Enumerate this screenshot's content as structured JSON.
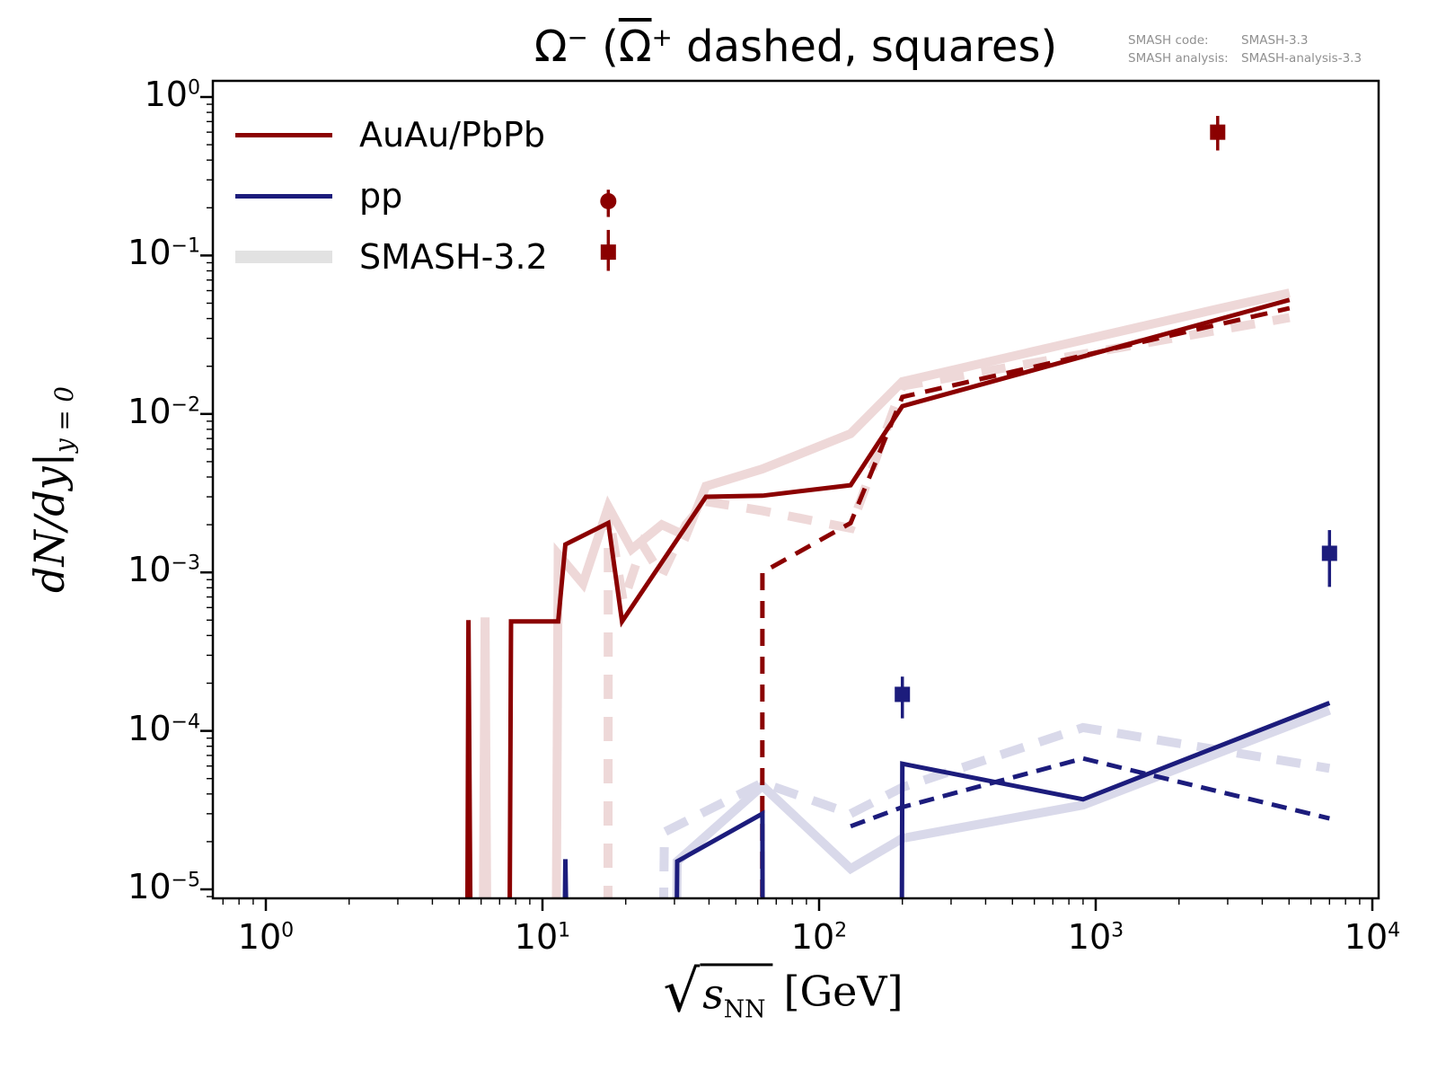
{
  "title": {
    "p1": "Ω",
    "s1": "−",
    "p2": " (",
    "p3": "Ω",
    "s2": "+",
    "p4": " dashed, squares)"
  },
  "note": {
    "line1_label": "SMASH code:",
    "line1_value": "SMASH-3.3",
    "line2_label": "SMASH analysis:",
    "line2_value": "SMASH-analysis-3.3"
  },
  "legend": {
    "items": [
      {
        "label": "AuAu/PbPb",
        "swatch": "auau"
      },
      {
        "label": "pp",
        "swatch": "pp"
      },
      {
        "label": "SMASH-3.2",
        "swatch": "smash_legend"
      }
    ]
  },
  "axes": {
    "ylabel_main": "dN/dy|",
    "ylabel_sub": "y = 0",
    "xlabel_radical": "√",
    "xlabel_symbol": "s",
    "xlabel_subscript": "NN",
    "xlabel_units": "[GeV]"
  },
  "colors": {
    "auau": "#8b0000",
    "pp": "#1c1c7c",
    "smash_auau": "#eed8d8",
    "smash_pp": "#d9d9ea",
    "smash_legend": "#e2e2e2",
    "note_text": "#909090"
  },
  "chart_data": {
    "type": "line",
    "title": "Ω⁻ (Ω̄⁺ dashed, squares)",
    "xlabel": "sqrt(s_NN) [GeV]",
    "ylabel": "dN/dy at y=0",
    "xscale": "log",
    "yscale": "log",
    "xlim": [
      0.64,
      10500
    ],
    "ylim": [
      8.8e-06,
      1.27
    ],
    "x_tick_exponents": [
      0,
      1,
      2,
      3,
      4
    ],
    "y_tick_exponents": [
      0,
      -1,
      -2,
      -3,
      -4,
      -5
    ],
    "legend_position": "upper left",
    "grid": false,
    "series": [
      {
        "name": "smash32-auau-omega-minus",
        "label": "SMASH-3.2 AuAu/PbPb Ω⁻",
        "color": "#eed8d8",
        "width": 10,
        "linestyle": "solid",
        "dash": "",
        "points": [
          [
            6.1,
            0
          ],
          [
            6.2,
            0.00052
          ],
          [
            6.3,
            0
          ],
          [
            11.2,
            0
          ],
          [
            11.4,
            0.0013
          ],
          [
            14,
            0.00085
          ],
          [
            17.3,
            0.0026
          ],
          [
            21,
            0.0014
          ],
          [
            27,
            0.002
          ],
          [
            33,
            0.0017
          ],
          [
            39,
            0.0035
          ],
          [
            62.4,
            0.0045
          ],
          [
            130,
            0.0075
          ],
          [
            200,
            0.016
          ],
          [
            2760,
            0.046
          ],
          [
            5020,
            0.058
          ]
        ]
      },
      {
        "name": "smash32-auau-omega-bar-plus",
        "label": "SMASH-3.2 AuAu/PbPb Ω̄⁺",
        "color": "#eed8d8",
        "width": 10,
        "linestyle": "dashed",
        "dash": "27 20",
        "points": [
          [
            17.25,
            0
          ],
          [
            17.3,
            0.00245
          ],
          [
            19.6,
            0.00065
          ],
          [
            23,
            0.0015
          ],
          [
            27,
            0.00095
          ],
          [
            33,
            0.002
          ],
          [
            39,
            0.0028
          ],
          [
            62.4,
            0.00245
          ],
          [
            130,
            0.0019
          ],
          [
            200,
            0.015
          ],
          [
            5020,
            0.0405
          ]
        ]
      },
      {
        "name": "smash32-pp-omega-minus",
        "label": "SMASH-3.2 pp Ω⁻",
        "color": "#d9d9ea",
        "width": 10,
        "linestyle": "solid",
        "dash": "",
        "points": [
          [
            30.5,
            0
          ],
          [
            30.7,
            1.5e-05
          ],
          [
            62.4,
            4.5e-05
          ],
          [
            130,
            1.35e-05
          ],
          [
            200,
            2.1e-05
          ],
          [
            900,
            3.4e-05
          ],
          [
            7000,
            0.000135
          ]
        ]
      },
      {
        "name": "smash32-pp-omega-bar-plus",
        "label": "SMASH-3.2 pp Ω̄⁺",
        "color": "#d9d9ea",
        "width": 10,
        "linestyle": "dashed",
        "dash": "27 18",
        "points": [
          [
            27.3,
            0
          ],
          [
            27.6,
            2.3e-05
          ],
          [
            62.4,
            4.7e-05
          ],
          [
            130,
            3e-05
          ],
          [
            200,
            4.4e-05
          ],
          [
            900,
            0.000105
          ],
          [
            7000,
            5.8e-05
          ]
        ]
      },
      {
        "name": "auau-omega-minus",
        "label": "AuAu/PbPb Ω⁻",
        "color": "#8b0000",
        "width": 5,
        "linestyle": "solid",
        "dash": "",
        "points": [
          [
            5.35,
            0
          ],
          [
            5.4,
            0.0005
          ],
          [
            5.5,
            0
          ],
          [
            7.6,
            0
          ],
          [
            7.7,
            0.00049
          ],
          [
            11.4,
            0.00049
          ],
          [
            12.1,
            0.0015
          ],
          [
            17.3,
            0.00205
          ],
          [
            19.4,
            0.00049
          ],
          [
            39,
            0.003
          ],
          [
            62.4,
            0.00305
          ],
          [
            130,
            0.00355
          ],
          [
            200,
            0.0112
          ],
          [
            5020,
            0.0525
          ]
        ]
      },
      {
        "name": "auau-omega-bar-plus",
        "label": "AuAu/PbPb Ω̄⁺",
        "color": "#8b0000",
        "width": 5,
        "linestyle": "dashed",
        "dash": "19 12",
        "points": [
          [
            62.3,
            0
          ],
          [
            62.4,
            0.001
          ],
          [
            130,
            0.00205
          ],
          [
            200,
            0.0128
          ],
          [
            5020,
            0.0465
          ]
        ]
      },
      {
        "name": "pp-omega-minus",
        "label": "pp Ω⁻",
        "color": "#1c1c7c",
        "width": 5,
        "linestyle": "solid",
        "dash": "",
        "points": [
          [
            12.0,
            0
          ],
          [
            12.1,
            1.55e-05
          ],
          [
            12.25,
            0
          ],
          [
            30.5,
            0
          ],
          [
            30.7,
            1.5e-05
          ],
          [
            62.4,
            3e-05
          ],
          [
            62.5,
            0
          ],
          [
            199,
            0
          ],
          [
            200,
            6.2e-05
          ],
          [
            900,
            3.7e-05
          ],
          [
            7000,
            0.00015
          ]
        ]
      },
      {
        "name": "pp-omega-bar-plus",
        "label": "pp Ω̄⁺",
        "color": "#1c1c7c",
        "width": 5,
        "linestyle": "dashed",
        "dash": "17 10",
        "points": [
          [
            130,
            2.5e-05
          ],
          [
            200,
            3.3e-05
          ],
          [
            900,
            6.7e-05
          ],
          [
            7000,
            2.8e-05
          ]
        ]
      }
    ],
    "markers": [
      {
        "name": "exp-auau-circle-17gev",
        "x": 17.3,
        "y": 0.22,
        "err_lo": 0.175,
        "err_hi": 0.26,
        "marker": "circle",
        "color": "#8b0000"
      },
      {
        "name": "exp-auau-square-17gev",
        "x": 17.3,
        "y": 0.105,
        "err_lo": 0.08,
        "err_hi": 0.145,
        "marker": "square",
        "color": "#8b0000"
      },
      {
        "name": "exp-auau-square-2760gev",
        "x": 2760,
        "y": 0.6,
        "err_lo": 0.46,
        "err_hi": 0.76,
        "marker": "square",
        "color": "#8b0000"
      },
      {
        "name": "exp-pp-square-200gev",
        "x": 200,
        "y": 0.00017,
        "err_lo": 0.00012,
        "err_hi": 0.00022,
        "marker": "square",
        "color": "#1c1c7c"
      },
      {
        "name": "exp-pp-square-7000gev",
        "x": 7000,
        "y": 0.00132,
        "err_lo": 0.00081,
        "err_hi": 0.00185,
        "marker": "square",
        "color": "#1c1c7c"
      }
    ]
  }
}
